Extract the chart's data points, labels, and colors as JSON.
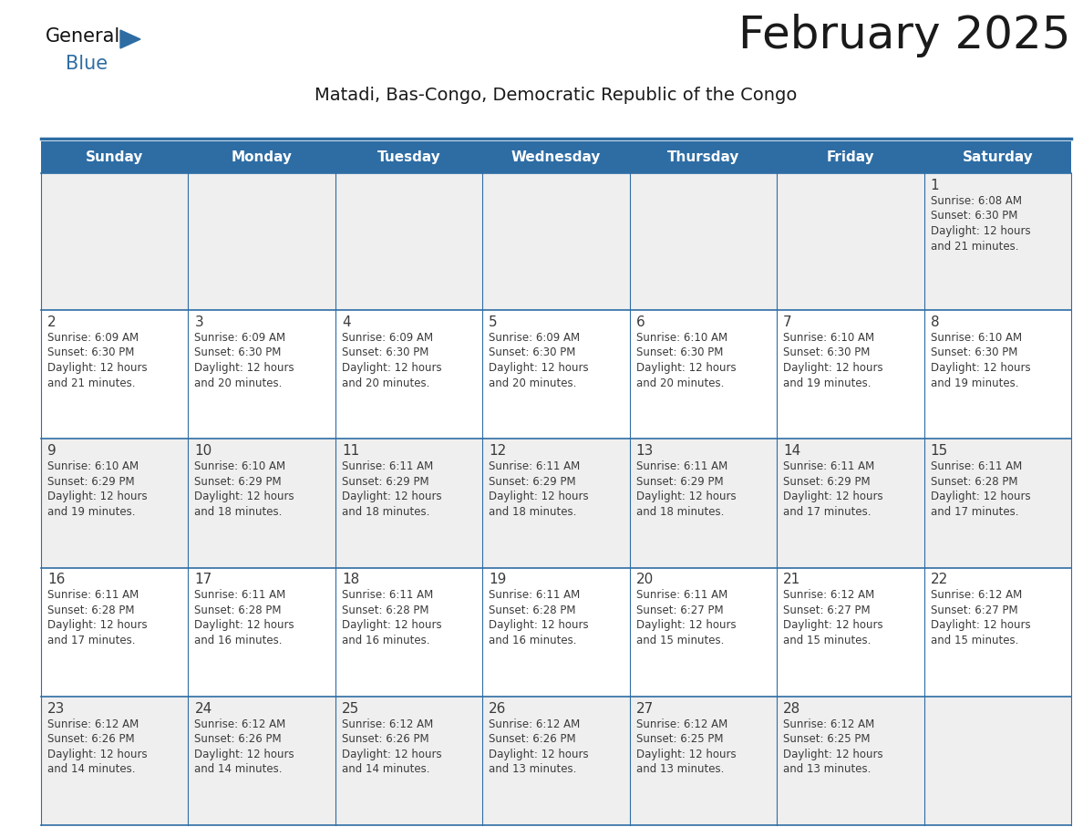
{
  "title": "February 2025",
  "subtitle": "Matadi, Bas-Congo, Democratic Republic of the Congo",
  "header_bg": "#2E6DA4",
  "header_text_color": "#FFFFFF",
  "cell_bg_white": "#FFFFFF",
  "cell_bg_gray": "#EFEFEF",
  "day_number_color": "#3B3B3B",
  "info_text_color": "#3B3B3B",
  "border_color": "#2E6DA4",
  "days_of_week": [
    "Sunday",
    "Monday",
    "Tuesday",
    "Wednesday",
    "Thursday",
    "Friday",
    "Saturday"
  ],
  "weeks": [
    [
      {
        "day": null,
        "info": ""
      },
      {
        "day": null,
        "info": ""
      },
      {
        "day": null,
        "info": ""
      },
      {
        "day": null,
        "info": ""
      },
      {
        "day": null,
        "info": ""
      },
      {
        "day": null,
        "info": ""
      },
      {
        "day": 1,
        "info": "Sunrise: 6:08 AM\nSunset: 6:30 PM\nDaylight: 12 hours\nand 21 minutes."
      }
    ],
    [
      {
        "day": 2,
        "info": "Sunrise: 6:09 AM\nSunset: 6:30 PM\nDaylight: 12 hours\nand 21 minutes."
      },
      {
        "day": 3,
        "info": "Sunrise: 6:09 AM\nSunset: 6:30 PM\nDaylight: 12 hours\nand 20 minutes."
      },
      {
        "day": 4,
        "info": "Sunrise: 6:09 AM\nSunset: 6:30 PM\nDaylight: 12 hours\nand 20 minutes."
      },
      {
        "day": 5,
        "info": "Sunrise: 6:09 AM\nSunset: 6:30 PM\nDaylight: 12 hours\nand 20 minutes."
      },
      {
        "day": 6,
        "info": "Sunrise: 6:10 AM\nSunset: 6:30 PM\nDaylight: 12 hours\nand 20 minutes."
      },
      {
        "day": 7,
        "info": "Sunrise: 6:10 AM\nSunset: 6:30 PM\nDaylight: 12 hours\nand 19 minutes."
      },
      {
        "day": 8,
        "info": "Sunrise: 6:10 AM\nSunset: 6:30 PM\nDaylight: 12 hours\nand 19 minutes."
      }
    ],
    [
      {
        "day": 9,
        "info": "Sunrise: 6:10 AM\nSunset: 6:29 PM\nDaylight: 12 hours\nand 19 minutes."
      },
      {
        "day": 10,
        "info": "Sunrise: 6:10 AM\nSunset: 6:29 PM\nDaylight: 12 hours\nand 18 minutes."
      },
      {
        "day": 11,
        "info": "Sunrise: 6:11 AM\nSunset: 6:29 PM\nDaylight: 12 hours\nand 18 minutes."
      },
      {
        "day": 12,
        "info": "Sunrise: 6:11 AM\nSunset: 6:29 PM\nDaylight: 12 hours\nand 18 minutes."
      },
      {
        "day": 13,
        "info": "Sunrise: 6:11 AM\nSunset: 6:29 PM\nDaylight: 12 hours\nand 18 minutes."
      },
      {
        "day": 14,
        "info": "Sunrise: 6:11 AM\nSunset: 6:29 PM\nDaylight: 12 hours\nand 17 minutes."
      },
      {
        "day": 15,
        "info": "Sunrise: 6:11 AM\nSunset: 6:28 PM\nDaylight: 12 hours\nand 17 minutes."
      }
    ],
    [
      {
        "day": 16,
        "info": "Sunrise: 6:11 AM\nSunset: 6:28 PM\nDaylight: 12 hours\nand 17 minutes."
      },
      {
        "day": 17,
        "info": "Sunrise: 6:11 AM\nSunset: 6:28 PM\nDaylight: 12 hours\nand 16 minutes."
      },
      {
        "day": 18,
        "info": "Sunrise: 6:11 AM\nSunset: 6:28 PM\nDaylight: 12 hours\nand 16 minutes."
      },
      {
        "day": 19,
        "info": "Sunrise: 6:11 AM\nSunset: 6:28 PM\nDaylight: 12 hours\nand 16 minutes."
      },
      {
        "day": 20,
        "info": "Sunrise: 6:11 AM\nSunset: 6:27 PM\nDaylight: 12 hours\nand 15 minutes."
      },
      {
        "day": 21,
        "info": "Sunrise: 6:12 AM\nSunset: 6:27 PM\nDaylight: 12 hours\nand 15 minutes."
      },
      {
        "day": 22,
        "info": "Sunrise: 6:12 AM\nSunset: 6:27 PM\nDaylight: 12 hours\nand 15 minutes."
      }
    ],
    [
      {
        "day": 23,
        "info": "Sunrise: 6:12 AM\nSunset: 6:26 PM\nDaylight: 12 hours\nand 14 minutes."
      },
      {
        "day": 24,
        "info": "Sunrise: 6:12 AM\nSunset: 6:26 PM\nDaylight: 12 hours\nand 14 minutes."
      },
      {
        "day": 25,
        "info": "Sunrise: 6:12 AM\nSunset: 6:26 PM\nDaylight: 12 hours\nand 14 minutes."
      },
      {
        "day": 26,
        "info": "Sunrise: 6:12 AM\nSunset: 6:26 PM\nDaylight: 12 hours\nand 13 minutes."
      },
      {
        "day": 27,
        "info": "Sunrise: 6:12 AM\nSunset: 6:25 PM\nDaylight: 12 hours\nand 13 minutes."
      },
      {
        "day": 28,
        "info": "Sunrise: 6:12 AM\nSunset: 6:25 PM\nDaylight: 12 hours\nand 13 minutes."
      },
      {
        "day": null,
        "info": ""
      }
    ]
  ],
  "logo_text_general": "General",
  "logo_text_blue": "Blue",
  "logo_triangle_color": "#2E6DA4",
  "title_fontsize": 36,
  "subtitle_fontsize": 14,
  "header_fontsize": 11,
  "day_number_fontsize": 11,
  "info_fontsize": 8.5
}
